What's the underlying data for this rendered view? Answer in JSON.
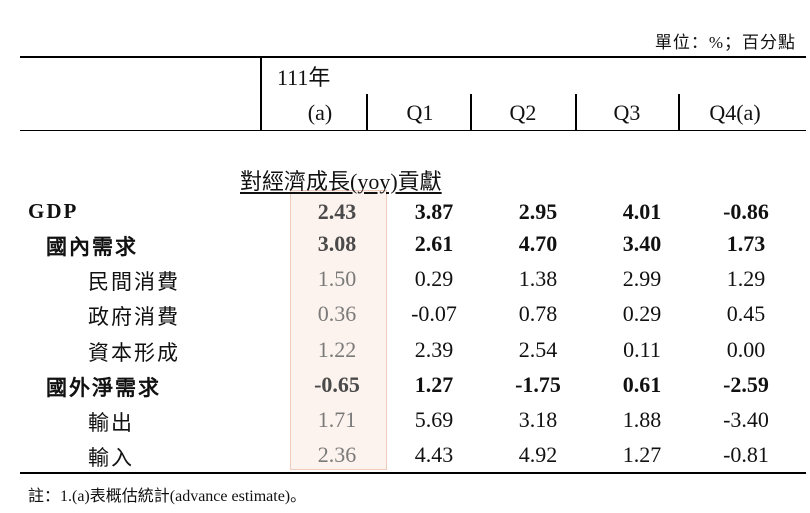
{
  "unit_note": "單位：%；百分點",
  "header": {
    "year": "111年",
    "cols": [
      "(a)",
      "Q1",
      "Q2",
      "Q3",
      "Q4(a)"
    ]
  },
  "section_title": "對經濟成長(yoy)貢獻",
  "rows": [
    {
      "label": "GDP",
      "values": [
        "2.43",
        "3.87",
        "2.95",
        "4.01",
        "-0.86"
      ]
    },
    {
      "label": "國內需求",
      "values": [
        "3.08",
        "2.61",
        "4.70",
        "3.40",
        "1.73"
      ]
    },
    {
      "label": "民間消費",
      "values": [
        "1.50",
        "0.29",
        "1.38",
        "2.99",
        "1.29"
      ]
    },
    {
      "label": "政府消費",
      "values": [
        "0.36",
        "-0.07",
        "0.78",
        "0.29",
        "0.45"
      ]
    },
    {
      "label": "資本形成",
      "values": [
        "1.22",
        "2.39",
        "2.54",
        "0.11",
        "0.00"
      ]
    },
    {
      "label": "國外淨需求",
      "values": [
        "-0.65",
        "1.27",
        "-1.75",
        "0.61",
        "-2.59"
      ]
    },
    {
      "label": "輸出",
      "values": [
        "1.71",
        "5.69",
        "3.18",
        "1.88",
        "-3.40"
      ]
    },
    {
      "label": "輸入",
      "values": [
        "2.36",
        "4.43",
        "4.92",
        "1.27",
        "-0.81"
      ]
    }
  ],
  "footnote": "註：1.(a)表概估統計(advance estimate)。"
}
